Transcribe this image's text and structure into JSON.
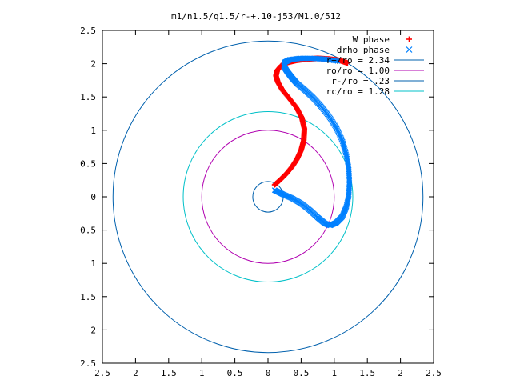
{
  "chart_data": {
    "type": "scatter",
    "title": "m1/n1.5/q1.5/r-+.10-j53/M1.0/512",
    "xlabel": "",
    "ylabel": "",
    "xlim": [
      -2.5,
      2.5
    ],
    "ylim": [
      -2.5,
      2.5
    ],
    "xticks": [
      -2.5,
      -2,
      -1.5,
      -1,
      -0.5,
      0,
      0.5,
      1,
      1.5,
      2,
      2.5
    ],
    "yticks": [
      -2.5,
      -2,
      -1.5,
      -1,
      -0.5,
      0,
      0.5,
      1,
      1.5,
      2,
      2.5
    ],
    "xtick_labels": [
      "2.5",
      "2",
      "1.5",
      "1",
      "0.5",
      "0",
      "0.5",
      "1",
      "1.5",
      "2",
      "2.5"
    ],
    "ytick_labels": [
      "2.5",
      "2",
      "1.5",
      "1",
      "0.5",
      "0",
      "0.5",
      "1",
      "1.5",
      "2",
      "2.5"
    ],
    "grid": false,
    "legend_position": "top-right",
    "series": [
      {
        "name": "W phase",
        "marker": "+",
        "color": "#ff0000",
        "x": [
          0.1,
          0.19,
          0.28,
          0.37,
          0.44,
          0.5,
          0.54,
          0.55,
          0.51,
          0.43,
          0.32,
          0.22,
          0.15,
          0.12,
          0.14,
          0.2,
          0.3,
          0.43,
          0.58,
          0.75,
          0.92,
          1.08,
          1.2
        ],
        "y": [
          0.18,
          0.26,
          0.35,
          0.46,
          0.57,
          0.7,
          0.85,
          1.02,
          1.19,
          1.34,
          1.48,
          1.6,
          1.72,
          1.82,
          1.9,
          1.97,
          2.02,
          2.05,
          2.07,
          2.08,
          2.07,
          2.05,
          2.01
        ]
      },
      {
        "name": "drho phase",
        "marker": "x",
        "color": "#0080ff",
        "x": [
          0.1,
          0.22,
          0.36,
          0.5,
          0.63,
          0.75,
          0.86,
          0.94,
          1.03,
          1.12,
          1.18,
          1.22,
          1.23,
          1.22,
          1.18,
          1.12,
          1.03,
          0.92,
          0.8,
          0.68,
          0.56,
          0.44,
          0.36,
          0.29,
          0.24,
          0.25,
          0.33,
          0.48,
          0.66,
          0.85,
          1.05
        ],
        "y": [
          0.1,
          0.04,
          -0.02,
          -0.1,
          -0.2,
          -0.31,
          -0.4,
          -0.43,
          -0.39,
          -0.3,
          -0.16,
          0.02,
          0.22,
          0.43,
          0.64,
          0.85,
          1.04,
          1.21,
          1.36,
          1.49,
          1.6,
          1.7,
          1.79,
          1.88,
          1.96,
          2.02,
          2.06,
          2.08,
          2.08,
          2.07,
          2.04
        ]
      },
      {
        "name": "r+/ro = 2.34",
        "type": "circle",
        "radius": 2.34,
        "color": "#0060ad"
      },
      {
        "name": "ro/ro = 1.00",
        "type": "circle",
        "radius": 1.0,
        "color": "#b000b0"
      },
      {
        "name": "r-/ro = .23",
        "type": "circle",
        "radius": 0.23,
        "color": "#0060ad"
      },
      {
        "name": "rc/ro = 1.28",
        "type": "circle",
        "radius": 1.28,
        "color": "#00c0c8"
      }
    ]
  }
}
